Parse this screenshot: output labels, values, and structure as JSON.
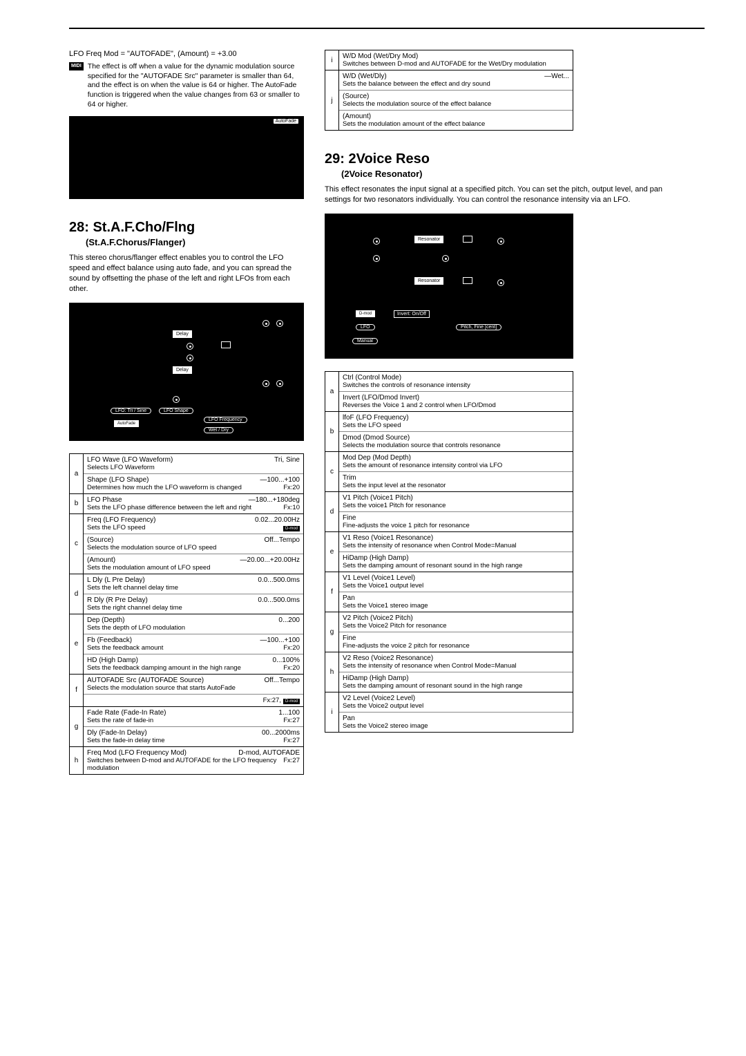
{
  "formula": "LFO Freq Mod = \"AUTOFADE\",  (Amount) = +3.00",
  "midi_badge": "MIDI",
  "midi_text": "The effect is off when a value for the dynamic modulation source specified for the \"AUTOFADE Src\" parameter is smaller than 64, and the effect is on when the value is 64 or higher. The AutoFade function is triggered when the value changes from 63 or smaller to 64 or higher.",
  "autofade_label": "AutoFade",
  "section28": {
    "num": "28:",
    "title": "St.A.F.Cho/Flng",
    "subtitle": "(St.A.F.Chorus/Flanger)",
    "desc": "This stereo chorus/flanger effect enables you to control the LFO speed and effect balance using auto fade, and you can spread the sound by offsetting the phase of the left and right LFOs from each other."
  },
  "section29": {
    "num": "29:",
    "title": "2Voice Reso",
    "subtitle": "(2Voice Resonator)",
    "desc": "This effect resonates the input signal at a specified pitch. You can set the pitch, output level, and pan settings for two resonators individually. You can control the resonance intensity via an LFO."
  },
  "diagram28": {
    "delay": "Delay",
    "lfo_tri_sine": "LFO: Tri / Sine",
    "lfo_shape": "LFO Shape",
    "autofade": "AutoFade",
    "lfo_frequency": "LFO Frequency",
    "wet_dry": "Wet / Dry"
  },
  "diagram29": {
    "resonator": "Resonator",
    "dmod": "D-mod",
    "invert": "Invert: On/Off",
    "lfo": "LFO",
    "pitch": "Pitch, Fine [cent]",
    "manual": "Manual"
  },
  "table28": [
    {
      "letter": "a",
      "rows": [
        {
          "name": "LFO Wave (LFO Waveform)",
          "val": "Tri, Sine",
          "desc": "Selects LFO Waveform"
        },
        {
          "name": "Shape (LFO Shape)",
          "val": "—100...+100",
          "desc": "Determines how much the LFO waveform is changed",
          "fx": "Fx:20"
        }
      ]
    },
    {
      "letter": "b",
      "rows": [
        {
          "name": "LFO Phase",
          "val": "—180...+180deg",
          "desc": "Sets the LFO phase difference between the left and right",
          "fx": "Fx:10"
        }
      ]
    },
    {
      "letter": "c",
      "rows": [
        {
          "name": "Freq (LFO Frequency)",
          "val": "0.02...20.00Hz",
          "desc": "Sets the LFO speed",
          "dmod": true
        },
        {
          "name": "(Source)",
          "val": "Off...Tempo",
          "desc": "Selects the modulation source of LFO speed"
        },
        {
          "name": "(Amount)",
          "val": "—20.00...+20.00Hz",
          "desc": "Sets the modulation amount of LFO speed"
        }
      ]
    },
    {
      "letter": "d",
      "rows": [
        {
          "name": "L Dly (L Pre Delay)",
          "val": "0.0...500.0ms",
          "desc": "Sets the left channel delay time"
        },
        {
          "name": "R Dly (R Pre Delay)",
          "val": "0.0...500.0ms",
          "desc": "Sets the right channel delay time"
        }
      ]
    },
    {
      "letter": "e",
      "rows": [
        {
          "name": "Dep (Depth)",
          "val": "0...200",
          "desc": "Sets the depth of LFO modulation"
        },
        {
          "name": "Fb (Feedback)",
          "val": "—100...+100",
          "desc": "Sets the feedback amount",
          "fx": "Fx:20"
        },
        {
          "name": "HD (High Damp)",
          "val": "0...100%",
          "desc": "Sets the feedback damping amount in the high range",
          "fx": "Fx:20"
        }
      ]
    },
    {
      "letter": "f",
      "rows": [
        {
          "name": "AUTOFADE Src (AUTOFADE Source)",
          "val": "Off...Tempo",
          "desc": "Selects the modulation source that starts AutoFade"
        },
        {
          "name": "",
          "val": "Fx:27,",
          "desc": "",
          "dmod": true,
          "fxonly": true
        }
      ]
    },
    {
      "letter": "g",
      "rows": [
        {
          "name": "Fade Rate (Fade-In Rate)",
          "val": "1...100",
          "desc": "Sets the rate of fade-in",
          "fx": "Fx:27"
        },
        {
          "name": "Dly (Fade-In Delay)",
          "val": "00...2000ms",
          "desc": "Sets the fade-in delay time",
          "fx": "Fx:27"
        }
      ]
    },
    {
      "letter": "h",
      "rows": [
        {
          "name": "Freq Mod (LFO Frequency Mod)",
          "val": "D-mod, AUTOFADE",
          "desc": "Switches between D-mod and AUTOFADE for the LFO frequency modulation",
          "fx": "Fx:27"
        }
      ]
    }
  ],
  "table_top_right": [
    {
      "letter": "i",
      "rows": [
        {
          "name": "W/D Mod (Wet/Dry Mod)",
          "val": "",
          "desc": "Switches between D-mod and AUTOFADE for the Wet/Dry modulation"
        }
      ]
    },
    {
      "letter": "j",
      "rows": [
        {
          "name": "W/D (Wet/Dly)",
          "val": "—Wet...",
          "desc": "Sets the balance between the effect and dry sound"
        },
        {
          "name": "(Source)",
          "val": "",
          "desc": "Selects the modulation source of the effect balance"
        },
        {
          "name": "(Amount)",
          "val": "",
          "desc": "Sets the modulation amount of the effect balance"
        }
      ]
    }
  ],
  "table29": [
    {
      "letter": "a",
      "rows": [
        {
          "name": "Ctrl (Control Mode)",
          "val": "",
          "desc": "Switches the controls of resonance intensity"
        },
        {
          "name": "Invert (LFO/Dmod Invert)",
          "val": "",
          "desc": "Reverses the Voice 1 and 2 control when LFO/Dmod"
        }
      ]
    },
    {
      "letter": "b",
      "rows": [
        {
          "name": "lfoF (LFO Frequency)",
          "val": "",
          "desc": "Sets the LFO speed"
        },
        {
          "name": "Dmod (Dmod Source)",
          "val": "",
          "desc": "Selects the modulation source that controls resonance"
        }
      ]
    },
    {
      "letter": "c",
      "rows": [
        {
          "name": "Mod Dep (Mod Depth)",
          "val": "",
          "desc": "Sets the amount of resonance intensity control via LFO"
        },
        {
          "name": "Trim",
          "val": "",
          "desc": "Sets the input level at the resonator"
        }
      ]
    },
    {
      "letter": "d",
      "rows": [
        {
          "name": "V1 Pitch (Voice1 Pitch)",
          "val": "",
          "desc": "Sets the voice1 Pitch for resonance"
        },
        {
          "name": "Fine",
          "val": "",
          "desc": "Fine-adjusts the voice 1 pitch for resonance"
        }
      ]
    },
    {
      "letter": "e",
      "rows": [
        {
          "name": "V1 Reso (Voice1 Resonance)",
          "val": "",
          "desc": "Sets the intensity of resonance when Control Mode=Manual"
        },
        {
          "name": "HiDamp (High Damp)",
          "val": "",
          "desc": "Sets the damping amount of resonant sound in the high range"
        }
      ]
    },
    {
      "letter": "f",
      "rows": [
        {
          "name": "V1 Level (Voice1 Level)",
          "val": "",
          "desc": "Sets the Voice1 output level"
        },
        {
          "name": "Pan",
          "val": "",
          "desc": "Sets the Voice1 stereo image"
        }
      ]
    },
    {
      "letter": "g",
      "rows": [
        {
          "name": "V2 Pitch (Voice2 Pitch)",
          "val": "",
          "desc": "Sets the Voice2 Pitch for resonance"
        },
        {
          "name": "Fine",
          "val": "",
          "desc": "Fine-adjusts the voice 2 pitch for resonance"
        }
      ]
    },
    {
      "letter": "h",
      "rows": [
        {
          "name": "V2 Reso (Voice2 Resonance)",
          "val": "",
          "desc": "Sets the intensity of resonance when Control Mode=Manual"
        },
        {
          "name": "HiDamp (High Damp)",
          "val": "",
          "desc": "Sets the damping amount of resonant sound in the high range"
        }
      ]
    },
    {
      "letter": "i",
      "rows": [
        {
          "name": "V2 Level (Voice2 Level)",
          "val": "",
          "desc": "Sets the Voice2 output level"
        },
        {
          "name": "Pan",
          "val": "",
          "desc": "Sets the Voice2 stereo image"
        }
      ]
    }
  ]
}
